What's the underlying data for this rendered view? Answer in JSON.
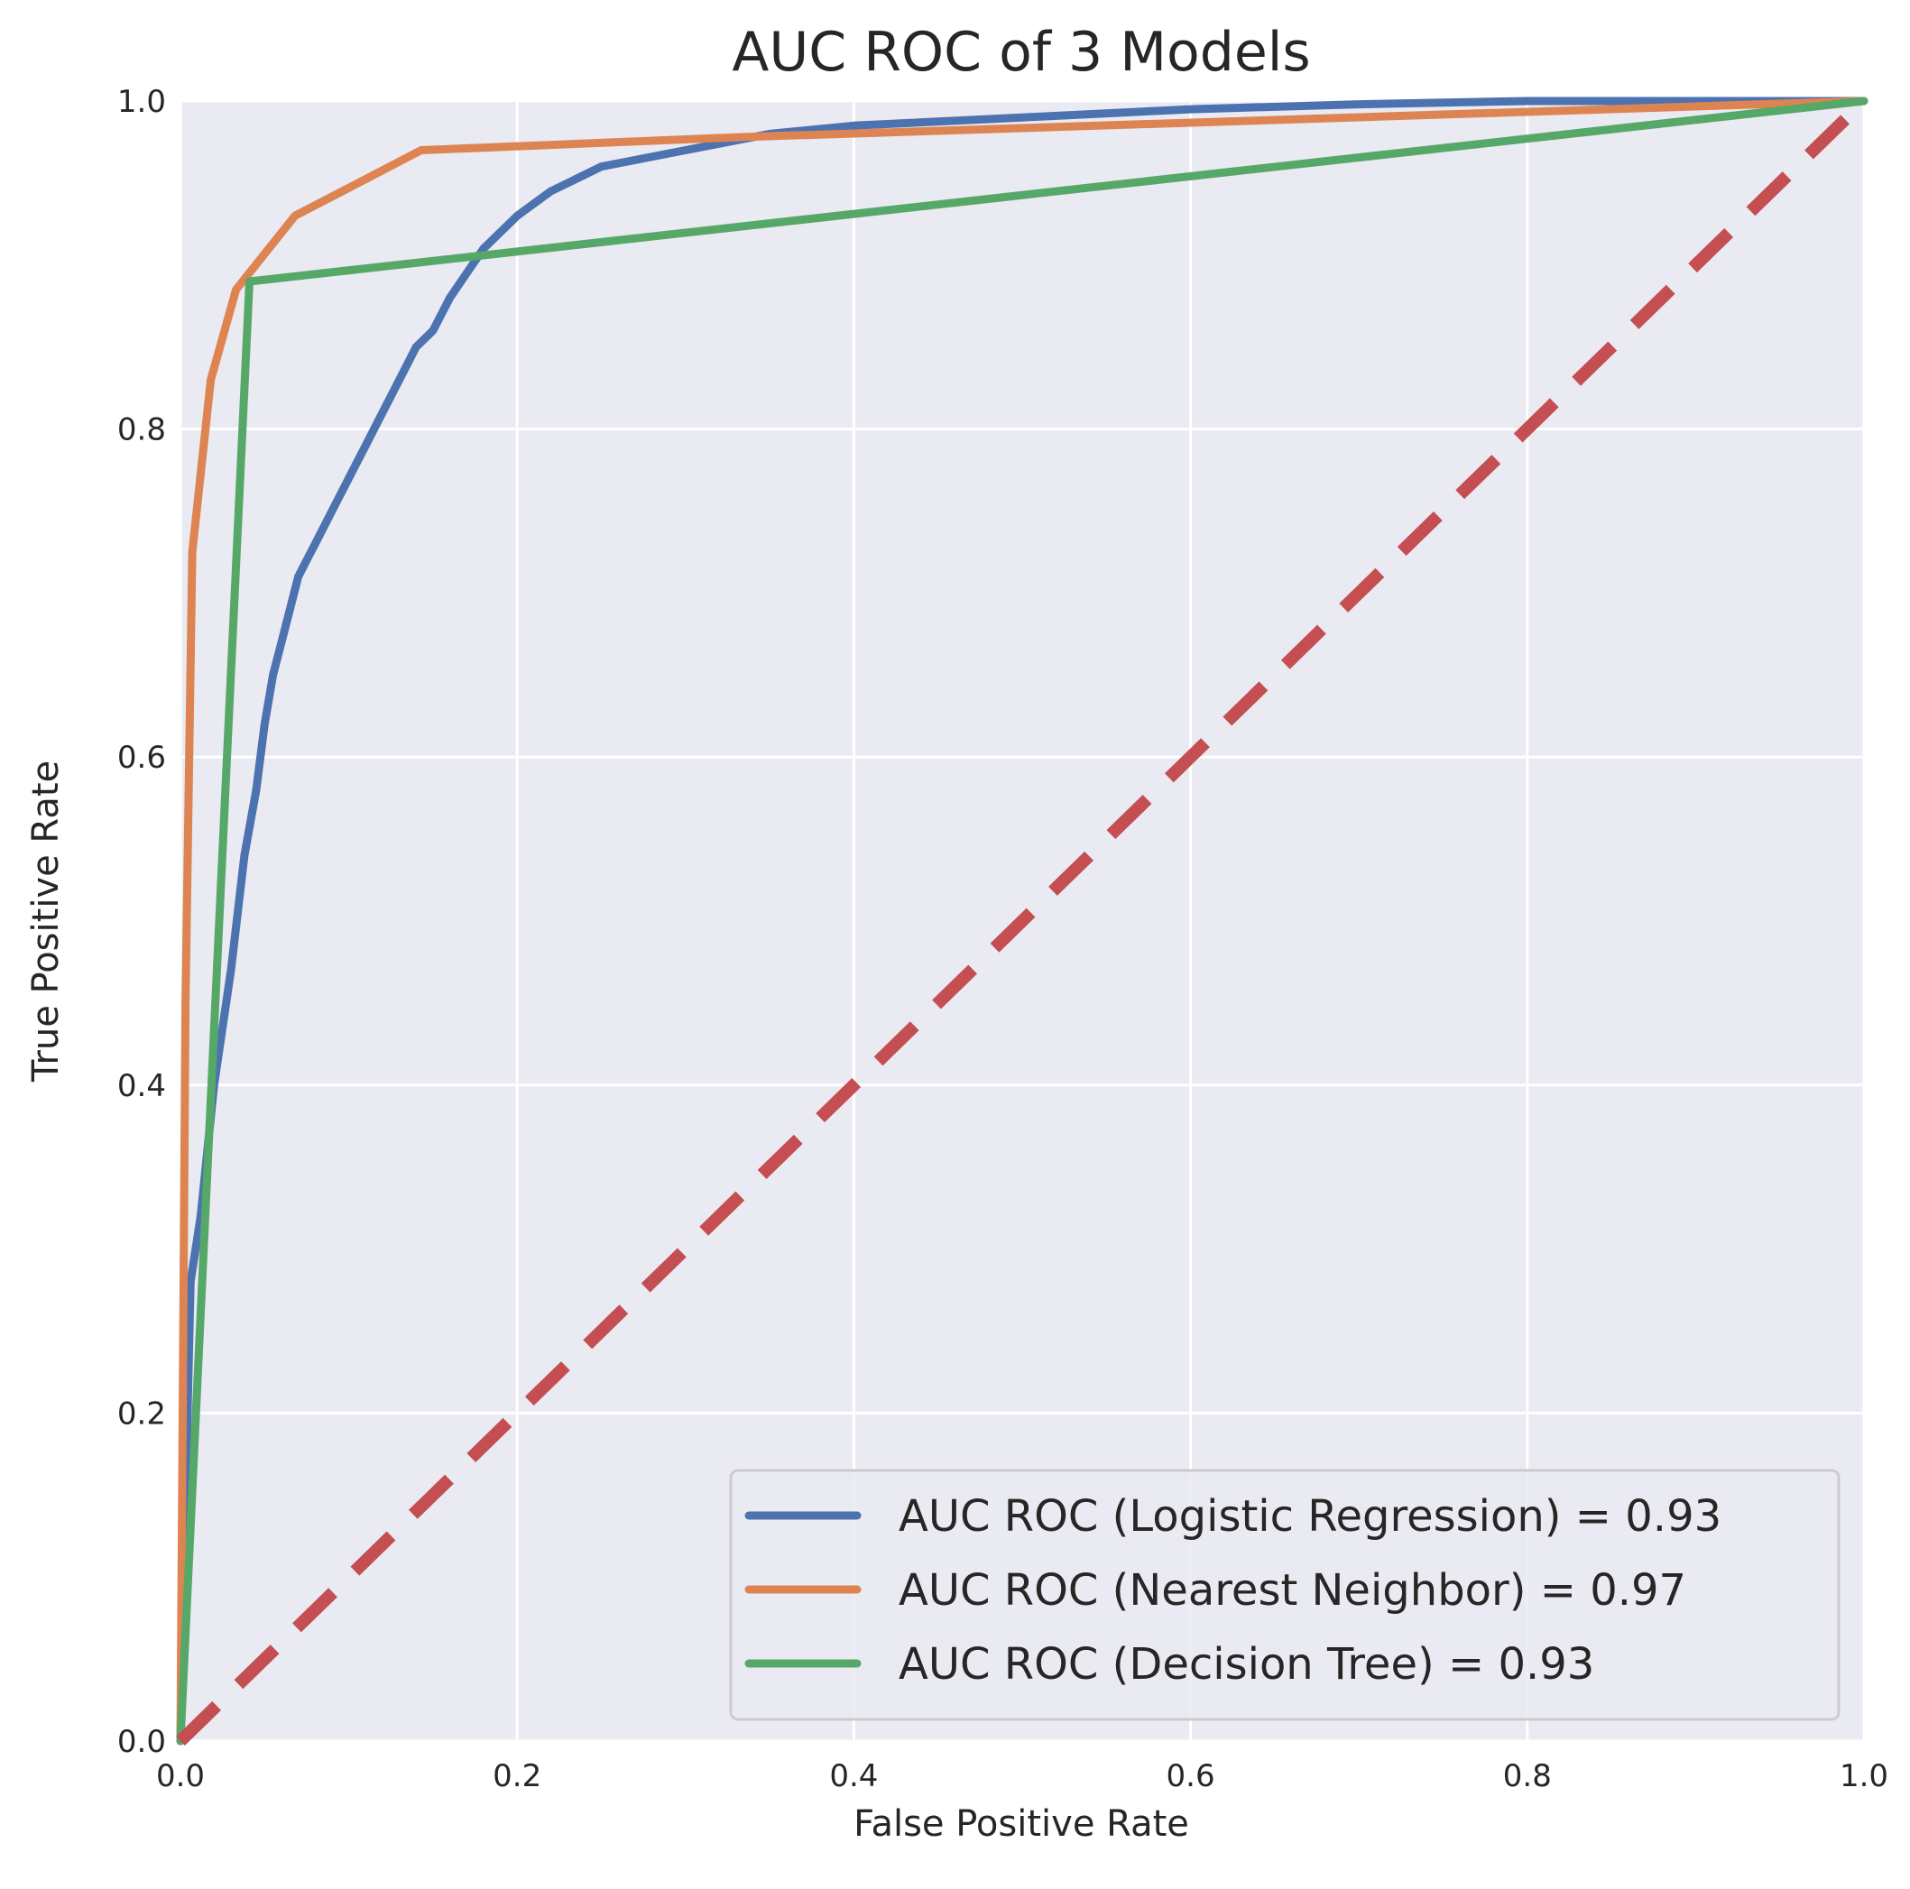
{
  "chart_data": {
    "type": "line",
    "title": "AUC ROC of 3 Models",
    "xlabel": "False Positive Rate",
    "ylabel": "True Positive Rate",
    "xlim": [
      0,
      1
    ],
    "ylim": [
      0,
      1
    ],
    "xticks": [
      "0.0",
      "0.2",
      "0.4",
      "0.6",
      "0.8",
      "1.0"
    ],
    "yticks": [
      "0.0",
      "0.2",
      "0.4",
      "0.6",
      "0.8",
      "1.0"
    ],
    "grid": true,
    "legend_position": "lower-right",
    "colors": {
      "background": "#eaeaf2",
      "grid": "#ffffff",
      "logistic": "#4c72b0",
      "nearest": "#dd8452",
      "tree": "#55a868",
      "diagonal": "#c44e52"
    },
    "series": [
      {
        "name": "AUC ROC (Logistic Regression) = 0.93",
        "color": "#4c72b0",
        "x": [
          0.0,
          0.002,
          0.006,
          0.012,
          0.02,
          0.03,
          0.038,
          0.045,
          0.05,
          0.055,
          0.06,
          0.065,
          0.07,
          0.075,
          0.08,
          0.09,
          0.1,
          0.11,
          0.12,
          0.13,
          0.14,
          0.15,
          0.16,
          0.17,
          0.18,
          0.2,
          0.22,
          0.25,
          0.3,
          0.35,
          0.4,
          0.5,
          0.6,
          0.7,
          0.8,
          1.0
        ],
        "y": [
          0.0,
          0.1,
          0.28,
          0.32,
          0.4,
          0.47,
          0.54,
          0.58,
          0.62,
          0.65,
          0.67,
          0.69,
          0.71,
          0.72,
          0.73,
          0.75,
          0.77,
          0.79,
          0.81,
          0.83,
          0.85,
          0.86,
          0.88,
          0.895,
          0.91,
          0.93,
          0.945,
          0.96,
          0.97,
          0.98,
          0.985,
          0.99,
          0.995,
          0.998,
          1.0,
          1.0
        ]
      },
      {
        "name": "AUC ROC (Nearest Neighbor) = 0.97",
        "color": "#dd8452",
        "x": [
          0.0,
          0.003,
          0.007,
          0.018,
          0.033,
          0.068,
          0.143,
          0.333,
          1.0
        ],
        "y": [
          0.0,
          0.45,
          0.725,
          0.83,
          0.885,
          0.93,
          0.97,
          0.978,
          1.0
        ]
      },
      {
        "name": "AUC ROC (Decision Tree) = 0.93",
        "color": "#55a868",
        "x": [
          0.0,
          0.041,
          1.0
        ],
        "y": [
          0.0,
          0.89,
          1.0
        ]
      }
    ],
    "diagonal": {
      "x": [
        0.0,
        1.0
      ],
      "y": [
        0.0,
        1.0
      ],
      "style": "dashed",
      "color": "#c44e52"
    }
  }
}
